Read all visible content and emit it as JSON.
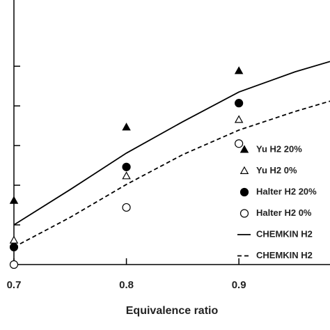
{
  "chart_data": {
    "type": "scatter",
    "x_label": "Equivalence ratio",
    "xlim": [
      0.7,
      0.981
    ],
    "xticks": [
      0.7,
      0.8,
      0.9
    ],
    "ylim": [
      0,
      6.67
    ],
    "yticks": [
      1,
      2,
      3,
      4,
      5
    ],
    "legend": "right",
    "series": [
      {
        "name": "Yu H2 20%",
        "color": "#000000",
        "marker": "triangle",
        "filled": true,
        "x": [
          0.7,
          0.8,
          0.9
        ],
        "values": [
          1.61,
          3.46,
          4.88
        ]
      },
      {
        "name": "Yu H2 0%",
        "color": "#000000",
        "marker": "triangle",
        "filled": false,
        "x": [
          0.7,
          0.8,
          0.9
        ],
        "values": [
          0.61,
          2.23,
          3.65
        ]
      },
      {
        "name": "Halter H2 20%",
        "color": "#000000",
        "marker": "circle",
        "filled": true,
        "x": [
          0.7,
          0.8,
          0.9
        ],
        "values": [
          0.44,
          2.46,
          4.07
        ]
      },
      {
        "name": "Halter H2 0%",
        "color": "#000000",
        "marker": "circle",
        "filled": false,
        "x": [
          0.7,
          0.8,
          0.9
        ],
        "values": [
          0,
          1.44,
          3.05
        ]
      },
      {
        "name": "CHEMKIN H2",
        "color": "#000000",
        "marker": "line",
        "dash": false,
        "x": [
          0.7,
          0.75,
          0.8,
          0.85,
          0.9,
          0.95,
          0.981
        ],
        "values": [
          1.0,
          1.89,
          2.81,
          3.6,
          4.35,
          4.86,
          5.12
        ]
      },
      {
        "name": "CHEMKIN H2",
        "color": "#000000",
        "marker": "line",
        "dash": true,
        "x": [
          0.7,
          0.75,
          0.8,
          0.85,
          0.9,
          0.95,
          0.981
        ],
        "values": [
          0.44,
          1.19,
          2.02,
          2.77,
          3.39,
          3.86,
          4.12
        ]
      }
    ]
  }
}
